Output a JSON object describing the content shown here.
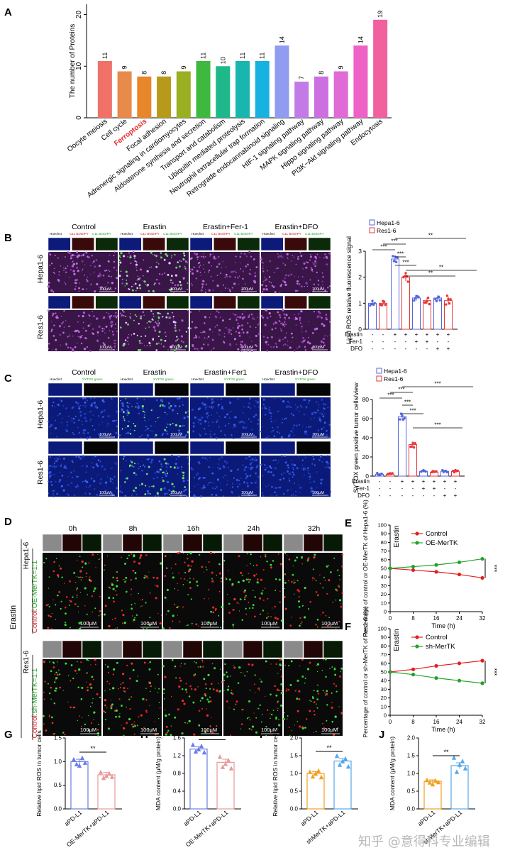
{
  "panels": {
    "A": "A",
    "B": "B",
    "C": "C",
    "D": "D",
    "E": "E",
    "F": "F",
    "G": "G",
    "H": "H",
    "I": "I",
    "J": "J"
  },
  "panel_A": {
    "ylabel": "The number of Proteins",
    "yticks": [
      "0",
      "10",
      "20"
    ],
    "ymax": 22,
    "highlight_color": "#e8262a",
    "bars": [
      {
        "label": "Oocyte meiosis",
        "value": 11,
        "color": "#f07167"
      },
      {
        "label": "Cell cycle",
        "value": 9,
        "color": "#e88a4a"
      },
      {
        "label": "Ferroptosis",
        "value": 8,
        "color": "#e8862a",
        "highlight": true
      },
      {
        "label": "Focal adhesion",
        "value": 8,
        "color": "#b89a1a"
      },
      {
        "label": "Adrenergic signaling in cardiomyocytes",
        "value": 9,
        "color": "#9aaf22"
      },
      {
        "label": "Aldosterone synthesis and secretion",
        "value": 11,
        "color": "#3fb83f"
      },
      {
        "label": "Transport and catabolism",
        "value": 10,
        "color": "#1eb88a"
      },
      {
        "label": "Ubiquitin mediated proteolysis",
        "value": 11,
        "color": "#19b6b0"
      },
      {
        "label": "Neutrophil extracellular trap formation",
        "value": 11,
        "color": "#18b2e0"
      },
      {
        "label": "Retrograde endocannabinoid signaling",
        "value": 14,
        "color": "#8f9cf0"
      },
      {
        "label": "HIF-1 signaling pathway",
        "value": 7,
        "color": "#c27ae6"
      },
      {
        "label": "MAPK signaling pathway",
        "value": 8,
        "color": "#cc6fe0"
      },
      {
        "label": "Hippo signaling pathway",
        "value": 9,
        "color": "#e06ad6"
      },
      {
        "label": "PI3K−Akt signaling pathway",
        "value": 14,
        "color": "#ee62c6"
      },
      {
        "label": "Endocytosis",
        "value": 19,
        "color": "#f0619e"
      }
    ]
  },
  "panel_B": {
    "col_headers": [
      "Control",
      "Erastin",
      "Erastin+Fer-1",
      "Erastin+DFO"
    ],
    "channel_labels": [
      "Hoechst",
      "C11 BODIPY",
      "C11 BODIPY"
    ],
    "rows": [
      "Hepa1-6",
      "Res1-6"
    ],
    "scale": "100μM",
    "chart": {
      "ylabel": "Lipid ROS relative fluorescence signal",
      "yticks": [
        "0",
        "1",
        "2",
        "3"
      ],
      "ymax": 3,
      "series": [
        {
          "name": "Hepa1-6",
          "color": "#5566dd"
        },
        {
          "name": "Res1-6",
          "color": "#e83535"
        }
      ],
      "values": [
        1.0,
        1.0,
        2.7,
        2.0,
        1.2,
        1.1,
        1.2,
        1.1
      ],
      "errors": [
        0.08,
        0.08,
        0.1,
        0.15,
        0.1,
        0.12,
        0.1,
        0.15
      ],
      "sig": [
        "***",
        "***",
        "***",
        "***",
        "**",
        "**",
        "**"
      ],
      "conditions": [
        {
          "name": "Erastin",
          "marks": [
            "-",
            "-",
            "+",
            "+",
            "+",
            "+",
            "+",
            "+"
          ]
        },
        {
          "name": "Fer-1",
          "marks": [
            "-",
            "-",
            "-",
            "-",
            "+",
            "+",
            "-",
            "-"
          ]
        },
        {
          "name": "DFO",
          "marks": [
            "-",
            "-",
            "-",
            "-",
            "-",
            "-",
            "+",
            "+"
          ]
        }
      ]
    }
  },
  "panel_C": {
    "col_headers": [
      "Control",
      "Erastin",
      "Erastin+Fer1",
      "Erastin+DFO"
    ],
    "channel_labels": [
      "Hoechst",
      "SYTOX green"
    ],
    "rows": [
      "Hepa1-6",
      "Res1-6"
    ],
    "scale": "100μM",
    "chart": {
      "ylabel": "SYTOX green positive tumor cells/view",
      "yticks": [
        "0",
        "20",
        "40",
        "60",
        "80"
      ],
      "ymax": 80,
      "series": [
        {
          "name": "Hepa1-6",
          "color": "#5566dd"
        },
        {
          "name": "Res1-6",
          "color": "#e83535"
        }
      ],
      "values": [
        2,
        2,
        62,
        33,
        5,
        4,
        5,
        5
      ],
      "errors": [
        1,
        1,
        4,
        3,
        1,
        1,
        1,
        1
      ],
      "sig": [
        "***",
        "***",
        "***",
        "***",
        "***",
        "***"
      ],
      "conditions": [
        {
          "name": "Erastin",
          "marks": [
            "-",
            "-",
            "+",
            "+",
            "+",
            "+",
            "+",
            "+"
          ]
        },
        {
          "name": "Fer-1",
          "marks": [
            "-",
            "-",
            "-",
            "-",
            "+",
            "+",
            "-",
            "-"
          ]
        },
        {
          "name": "DFO",
          "marks": [
            "-",
            "-",
            "-",
            "-",
            "-",
            "-",
            "+",
            "+"
          ]
        }
      ]
    }
  },
  "panel_D": {
    "times": [
      "0h",
      "8h",
      "16h",
      "24h",
      "32h"
    ],
    "side": "Erastin",
    "rows": [
      {
        "cell": "Hepa1-6",
        "mix_a": "Control",
        "mix_b": ":OE-MerTK=1:1"
      },
      {
        "cell": "Res1-6",
        "mix_a": "Control",
        "mix_b": ":sh-MerTK=1:1"
      }
    ],
    "scale": "100μM"
  },
  "panel_E": {
    "title": "Erastin",
    "ylabel": "Percentage of control or OE-MerTK of Hepa1-6 (%)",
    "xlabel": "Time (h)",
    "x": [
      0,
      8,
      16,
      24,
      32
    ],
    "yticks": [
      "0",
      "10",
      "20",
      "30",
      "40",
      "50",
      "60",
      "70",
      "80",
      "90",
      "100"
    ],
    "ymax": 100,
    "sig": "***",
    "series": [
      {
        "name": "Control",
        "color": "#e02020",
        "values": [
          50,
          48,
          46,
          43,
          39
        ]
      },
      {
        "name": "OE-MerTK",
        "color": "#22a22a",
        "values": [
          50,
          52,
          54,
          57,
          61
        ]
      }
    ]
  },
  "panel_F": {
    "title": "Erastin",
    "ylabel": "Percentage of control or sh-MerTK of Res1-6 (%)",
    "xlabel": "Time (h)",
    "x": [
      0,
      8,
      16,
      24,
      32
    ],
    "yticks": [
      "0",
      "10",
      "20",
      "30",
      "40",
      "50",
      "60",
      "70",
      "80",
      "90",
      "100"
    ],
    "ymax": 100,
    "sig": "***",
    "series": [
      {
        "name": "Control",
        "color": "#e02020",
        "values": [
          50,
          53,
          57,
          60,
          63
        ]
      },
      {
        "name": "sh-MerTK",
        "color": "#22a22a",
        "values": [
          50,
          47,
          43,
          40,
          37
        ]
      }
    ]
  },
  "panel_G": {
    "ylabel": "Relative lipid ROS in tumor cells",
    "yticks": [
      "0.0",
      "0.5",
      "1.0",
      "1.5"
    ],
    "ymax": 1.5,
    "sig": "**",
    "groups": [
      {
        "label": "aPD-L1",
        "value": 1.0,
        "err": 0.05,
        "color": "#6a7de6",
        "points": [
          1.05,
          0.95,
          0.92,
          1.08,
          0.98
        ]
      },
      {
        "label": "OE-MerTK+aPD-L1",
        "value": 0.72,
        "err": 0.05,
        "color": "#e89a9a",
        "points": [
          0.78,
          0.66,
          0.7,
          0.75,
          0.68
        ]
      }
    ]
  },
  "panel_H": {
    "ylabel": "MDA content (μM/g protein)",
    "yticks": [
      "0.0",
      "0.4",
      "0.8",
      "1.2",
      "1.6"
    ],
    "ymax": 1.6,
    "sig": "**",
    "groups": [
      {
        "label": "aPD-L1",
        "value": 1.35,
        "err": 0.05,
        "color": "#6a7de6",
        "points": [
          1.45,
          1.3,
          1.35,
          1.42,
          1.28
        ]
      },
      {
        "label": "OE-MerTK+aPD-L1",
        "value": 1.05,
        "err": 0.07,
        "color": "#e89a9a",
        "points": [
          1.18,
          0.95,
          1.02,
          1.1,
          0.92
        ]
      }
    ]
  },
  "panel_I": {
    "ylabel": "Relative lipid ROS in tumor cells",
    "yticks": [
      "0.0",
      "0.5",
      "1.0",
      "1.5",
      "2.0"
    ],
    "ymax": 2.0,
    "sig": "**",
    "groups": [
      {
        "label": "aPD-L1",
        "value": 1.0,
        "err": 0.05,
        "color": "#f0a020",
        "points": [
          1.05,
          0.92,
          1.0,
          1.08,
          0.9
        ]
      },
      {
        "label": "shMerTK+aPD-L1",
        "value": 1.35,
        "err": 0.07,
        "color": "#56a8e8",
        "points": [
          1.5,
          1.25,
          1.35,
          1.42,
          1.2
        ]
      }
    ]
  },
  "panel_J": {
    "ylabel": "MDA content (μM/g protein)",
    "yticks": [
      "0.0",
      "0.5",
      "1.0",
      "1.5",
      "2.0"
    ],
    "ymax": 2.0,
    "sig": "**",
    "groups": [
      {
        "label": "aPD-L1",
        "value": 0.78,
        "err": 0.04,
        "color": "#f0a020",
        "points": [
          0.82,
          0.75,
          0.7,
          0.8,
          0.76
        ]
      },
      {
        "label": "shMerTK+aPD-L1",
        "value": 1.22,
        "err": 0.08,
        "color": "#56a8e8",
        "points": [
          1.45,
          1.05,
          1.25,
          1.35,
          1.15
        ]
      }
    ]
  },
  "watermark": "知乎 @意得科专业编辑"
}
